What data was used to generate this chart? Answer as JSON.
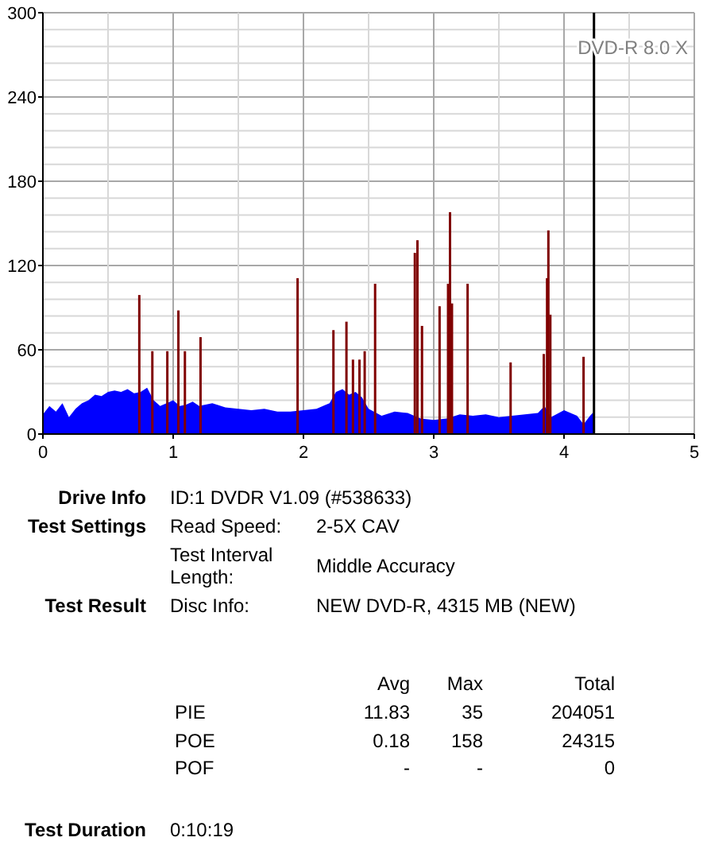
{
  "chart_data": [
    {
      "type": "bar",
      "xlim": [
        0,
        5
      ],
      "ylim": [
        0,
        300
      ],
      "xticks": [
        0,
        {
          "value": 0.5,
          "label": null
        },
        1,
        {
          "value": 1.5,
          "label": null
        },
        2,
        {
          "value": 2.5,
          "label": null
        },
        3,
        {
          "value": 3.5,
          "label": null
        },
        4,
        {
          "value": 4.5,
          "label": null
        },
        5
      ],
      "yticks": [
        0,
        {
          "value": 12,
          "label": null
        },
        {
          "value": 24,
          "label": null
        },
        {
          "value": 36,
          "label": null
        },
        {
          "value": 48,
          "label": null
        },
        60,
        {
          "value": 72,
          "label": null
        },
        {
          "value": 84,
          "label": null
        },
        {
          "value": 96,
          "label": null
        },
        {
          "value": 108,
          "label": null
        },
        120,
        {
          "value": 132,
          "label": null
        },
        {
          "value": 144,
          "label": null
        },
        {
          "value": 156,
          "label": null
        },
        {
          "value": 168,
          "label": null
        },
        180,
        {
          "value": 192,
          "label": null
        },
        {
          "value": 204,
          "label": null
        },
        {
          "value": 216,
          "label": null
        },
        {
          "value": 228,
          "label": null
        },
        240,
        {
          "value": 252,
          "label": null
        },
        {
          "value": 264,
          "label": null
        },
        {
          "value": 276,
          "label": null
        },
        {
          "value": 288,
          "label": null
        },
        300
      ],
      "grid": true,
      "series": [
        {
          "type": "area",
          "color": "#0000ff",
          "x": [
            0,
            0.05,
            0.1,
            0.15,
            0.2,
            0.25,
            0.3,
            0.35,
            0.4,
            0.45,
            0.5,
            0.55,
            0.6,
            0.65,
            0.7,
            0.75,
            0.8,
            0.85,
            0.9,
            0.95,
            1.0,
            1.05,
            1.1,
            1.15,
            1.2,
            1.3,
            1.4,
            1.5,
            1.6,
            1.7,
            1.8,
            1.9,
            2.0,
            2.1,
            2.2,
            2.25,
            2.3,
            2.35,
            2.4,
            2.45,
            2.5,
            2.6,
            2.7,
            2.8,
            2.9,
            3.0,
            3.1,
            3.2,
            3.3,
            3.4,
            3.5,
            3.6,
            3.7,
            3.8,
            3.85,
            3.9,
            4.0,
            4.1,
            4.15,
            4.2,
            4.23
          ],
          "values": [
            14,
            20,
            16,
            22,
            12,
            18,
            22,
            24,
            28,
            27,
            30,
            31,
            30,
            32,
            29,
            30,
            33,
            24,
            20,
            22,
            24,
            20,
            21,
            23,
            20,
            22,
            19,
            18,
            17,
            18,
            16,
            16,
            17,
            18,
            22,
            30,
            32,
            28,
            30,
            26,
            18,
            13,
            16,
            15,
            11,
            10,
            11,
            14,
            13,
            14,
            12,
            13,
            14,
            15,
            20,
            12,
            17,
            13,
            7,
            13,
            16
          ]
        },
        {
          "type": "bar",
          "color": "#800000",
          "x": [
            0.74,
            0.84,
            0.955,
            1.04,
            1.09,
            1.21,
            1.955,
            2.23,
            2.33,
            2.38,
            2.43,
            2.47,
            2.55,
            2.855,
            2.875,
            2.91,
            3.045,
            3.11,
            3.125,
            3.14,
            3.26,
            3.59,
            3.845,
            3.87,
            3.88,
            3.895,
            4.15
          ],
          "values": [
            99,
            59,
            59,
            88,
            59,
            69,
            111,
            74,
            80,
            53,
            53,
            59,
            107,
            129,
            138,
            77,
            91,
            107,
            158,
            93,
            107,
            51,
            57,
            111,
            145,
            85,
            55
          ]
        }
      ],
      "ref_lines": [
        {
          "axis": "x",
          "value": 4.23,
          "color": "#000000"
        }
      ],
      "annotations": [
        "DVD-R 8.0 X"
      ]
    },
    {
      "type": "other",
      "annotations": [
        "Drive Info",
        "ID:1 DVDR V1.09 (#538633)",
        "Test Settings",
        "Read Speed:",
        "2-5X CAV",
        "Test Interval Length:",
        "Middle Accuracy",
        "Test Result",
        "Disc Info:",
        "NEW DVD-R, 4315 MB (NEW)",
        "Avg",
        "Max",
        "Total",
        "PIE",
        "11.83",
        "35",
        "204051",
        "POE",
        "0.18",
        "158",
        "24315",
        "POF",
        "-",
        "-",
        "0",
        "Test Duration",
        "0:10:19"
      ]
    }
  ]
}
